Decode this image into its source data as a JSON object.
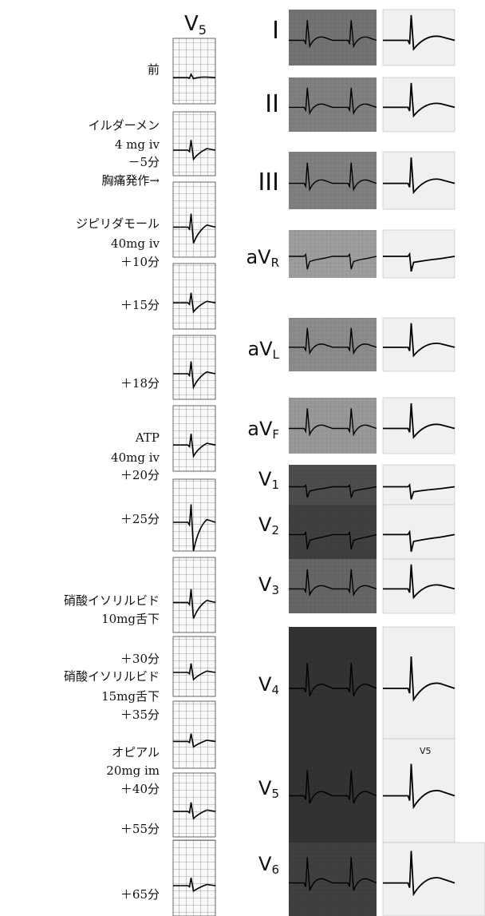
{
  "v5_column": {
    "title": {
      "name": "V",
      "sub": "5"
    },
    "entries": [
      [
        "前"
      ],
      [
        "イルダーメン",
        "4 mg iv",
        "－5分",
        "胸痛発作→"
      ],
      [
        "ジピリダモール",
        "40mg iv",
        "＋10分"
      ],
      [
        "＋15分"
      ],
      [
        "＋18分"
      ],
      [
        "ATP",
        "40mg iv",
        "＋20分"
      ],
      [
        "＋25分"
      ],
      [
        "硝酸イソリルビド",
        "10mg舌下"
      ],
      [
        "＋30分",
        "硝酸イソリルビド",
        "15mg舌下",
        "＋35分"
      ],
      [
        "オピアル",
        "20mg im",
        "＋40分"
      ],
      [
        "＋55分"
      ],
      [
        "＋65分"
      ]
    ]
  },
  "leads": [
    {
      "name": "I"
    },
    {
      "name": "II"
    },
    {
      "name": "III"
    },
    {
      "name": "aV",
      "sub": "R"
    },
    {
      "name": "aV",
      "sub": "L"
    },
    {
      "name": "aV",
      "sub": "F"
    },
    {
      "name": "V",
      "sub": "1"
    },
    {
      "name": "V",
      "sub": "2"
    },
    {
      "name": "V",
      "sub": "3"
    },
    {
      "name": "V",
      "sub": "4"
    },
    {
      "name": "V",
      "sub": "5"
    },
    {
      "name": "V",
      "sub": "6"
    }
  ],
  "inset_label": "V5"
}
